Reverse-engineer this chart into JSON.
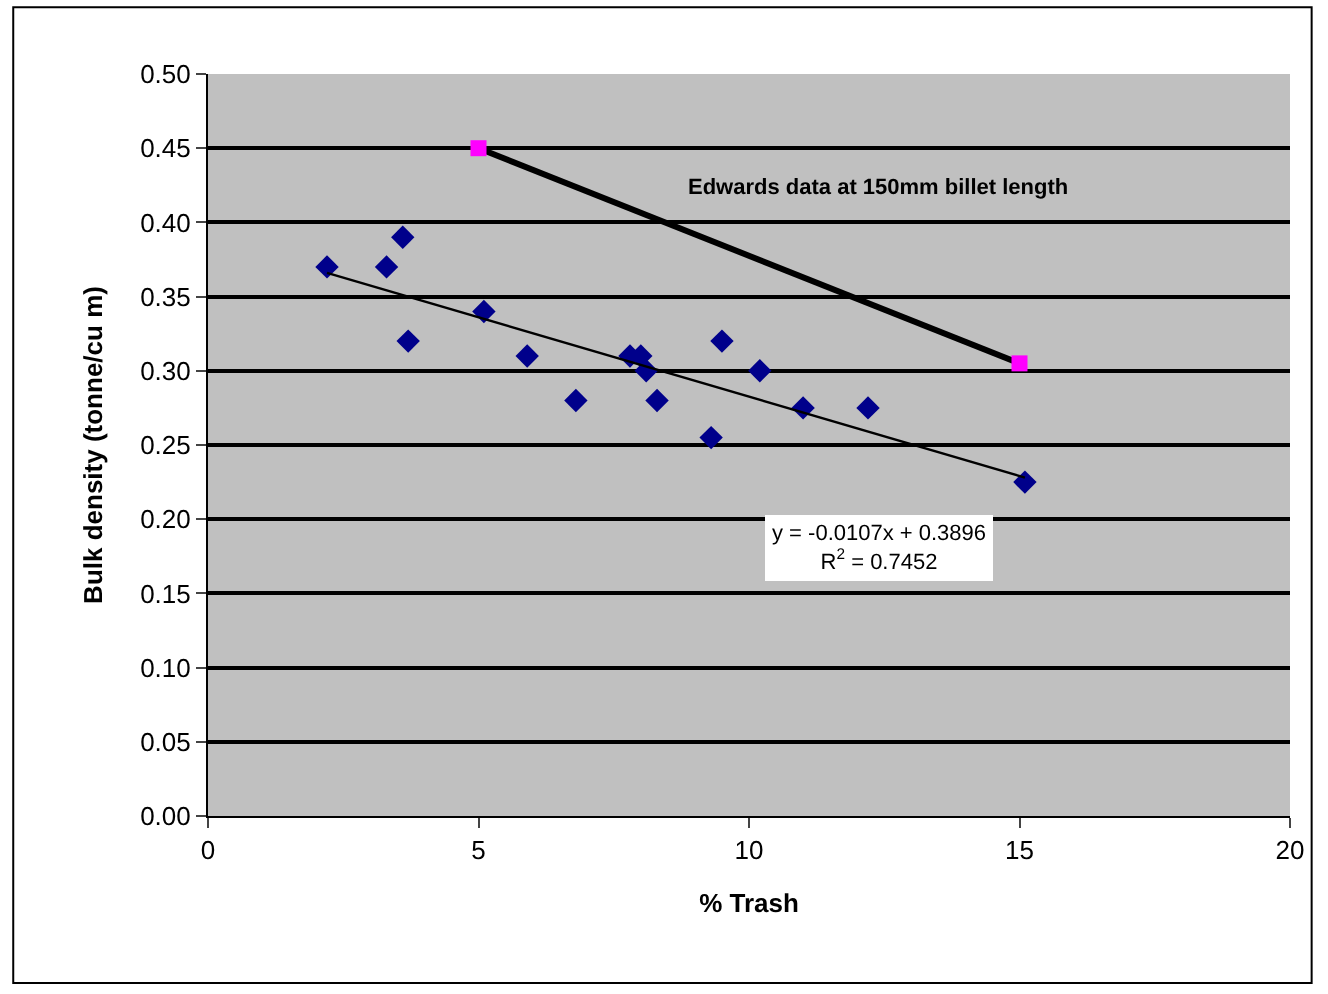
{
  "chart_data": {
    "type": "scatter",
    "xlabel": "% Trash",
    "ylabel": "Bulk density (tonne/cu m)",
    "xlim": [
      0,
      20
    ],
    "xticks": [
      0,
      5,
      10,
      15,
      20
    ],
    "ylim": [
      0,
      0.5
    ],
    "yticks": [
      {
        "value": 0,
        "label": "0.00"
      },
      {
        "value": 0.05,
        "label": "0.05"
      },
      {
        "value": 0.1,
        "label": "0.10"
      },
      {
        "value": 0.15,
        "label": "0.15"
      },
      {
        "value": 0.2,
        "label": "0.20"
      },
      {
        "value": 0.25,
        "label": "0.25"
      },
      {
        "value": 0.3,
        "label": "0.30"
      },
      {
        "value": 0.35,
        "label": "0.35"
      },
      {
        "value": 0.4,
        "label": "0.40"
      },
      {
        "value": 0.45,
        "label": "0.45"
      },
      {
        "value": 0.5,
        "label": "0.50"
      }
    ],
    "grid": "y",
    "legend": false,
    "series": [
      {
        "color": "#00008b",
        "marker": "diamond",
        "x": [
          2.2,
          3.3,
          3.6,
          3.7,
          5.1,
          5.9,
          6.8,
          7.8,
          8.0,
          8.1,
          8.3,
          9.3,
          9.5,
          10.2,
          11.0,
          12.2,
          15.1
        ],
        "values": [
          0.37,
          0.37,
          0.39,
          0.32,
          0.34,
          0.31,
          0.28,
          0.31,
          0.31,
          0.3,
          0.28,
          0.255,
          0.32,
          0.3,
          0.275,
          0.275,
          0.225
        ]
      },
      {
        "type": "line",
        "color": "#000000",
        "marker": "none",
        "x": [
          2.2,
          15.1
        ],
        "values": [
          0.366,
          0.228
        ]
      },
      {
        "type": "line",
        "name": "Edwards data at 150mm billet length",
        "color": "#000000",
        "colors": [
          "#ff00ff",
          "#ff00ff"
        ],
        "marker": "square",
        "x": [
          5,
          15
        ],
        "values": [
          0.45,
          0.305
        ]
      }
    ],
    "annotations": [
      "y = -0.0107x + 0.3896\nR$^{2}$ = 0.7452"
    ]
  }
}
